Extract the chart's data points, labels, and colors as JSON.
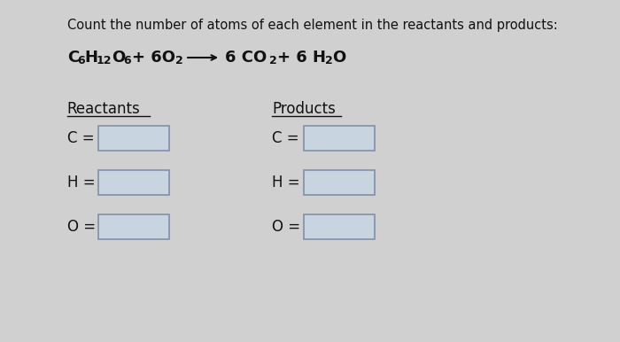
{
  "background_color": "#d0d0d0",
  "title_line1": "Count the number of atoms of each element in the reactants and products:",
  "reactants_label": "Reactants",
  "products_label": "Products",
  "elements": [
    "C =",
    "H =",
    "O ="
  ],
  "box_color": "#c8d4e0",
  "box_edge_color": "#8090a8",
  "text_color": "#111111",
  "title_fontsize": 10.5,
  "label_fontsize": 12,
  "element_fontsize": 12
}
